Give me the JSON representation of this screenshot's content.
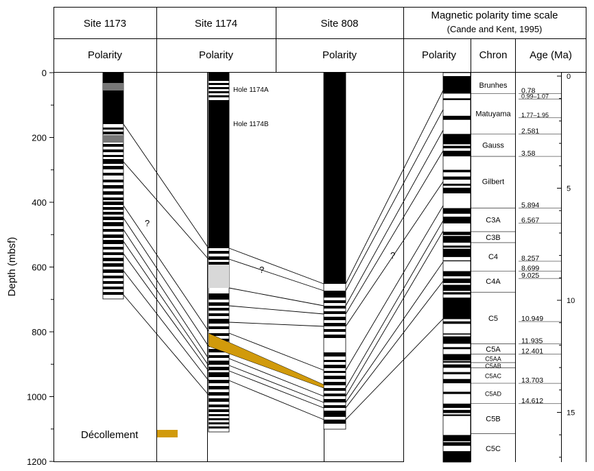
{
  "headers": {
    "site1173": "Site 1173",
    "site1174": "Site 1174",
    "site808": "Site 808",
    "gpts_title": "Magnetic polarity time scale",
    "gpts_source": "(Cande and Kent, 1995)",
    "polarity": "Polarity",
    "chron": "Chron",
    "age": "Age (Ma)"
  },
  "depth_axis": {
    "label": "Depth (mbsf)",
    "ticks": [
      "0",
      "200",
      "400",
      "600",
      "800",
      "1000",
      "1200"
    ],
    "range": [
      0,
      1200
    ]
  },
  "age_axis": {
    "ticks": [
      "0",
      "5",
      "10",
      "15"
    ]
  },
  "hole_labels": [
    "Hole 1174A",
    "Hole 1174B"
  ],
  "question_marks": [
    "?",
    "?",
    "?"
  ],
  "legend": {
    "label": "Décollement",
    "color": "#d19a0b"
  },
  "chrons": [
    "Brunhes",
    "Matuyama",
    "Gauss",
    "Gilbert",
    "C3A",
    "C3B",
    "C4",
    "C4A",
    "C5",
    "C5A",
    "C5AA",
    "C5AB",
    "C5AC",
    "C5AD",
    "C5B",
    "C5C"
  ],
  "ages": [
    "0.78",
    "0.99–1.07",
    "1.77–1.95",
    "2.581",
    "3.58",
    "5.894",
    "6.567",
    "8.257",
    "8.699",
    "9.025",
    "10.949",
    "11.935",
    "12.401",
    "13.703",
    "14.612"
  ],
  "colors": {
    "normal": "#000000",
    "reversed": "#ffffff",
    "uncertain": "#777777",
    "no_data": "#d8d8d8",
    "decollement": "#d19a0b"
  }
}
